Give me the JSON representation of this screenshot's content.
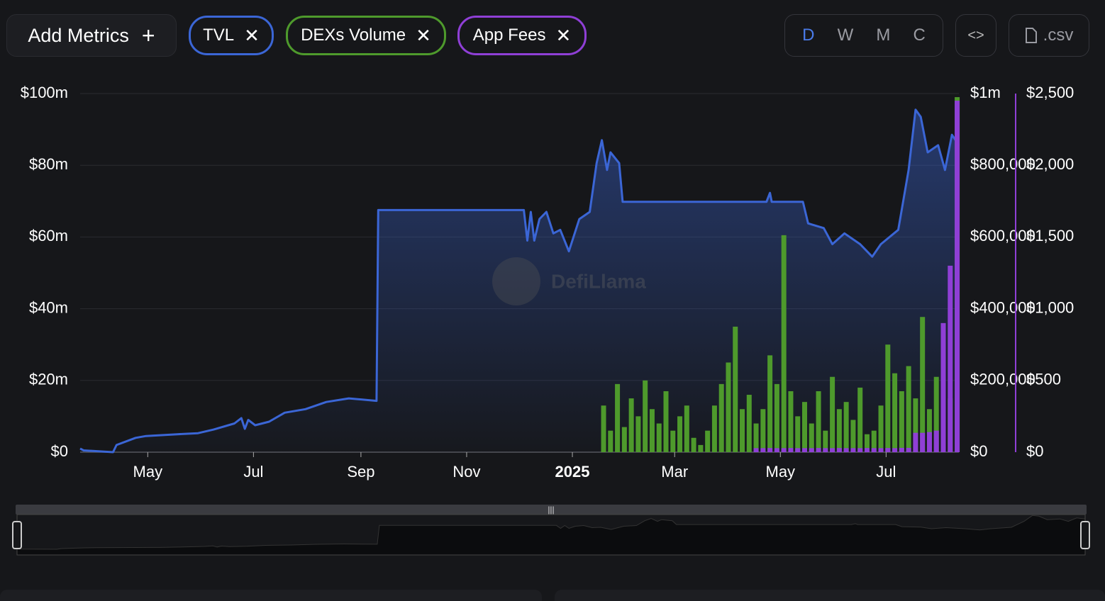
{
  "toolbar": {
    "add_metrics": "Add Metrics",
    "granularity": [
      "D",
      "W",
      "M",
      "C"
    ],
    "export": ".csv"
  },
  "watermark": "DefiLlama",
  "chart_data": {
    "type": "combo",
    "xlim": [
      0,
      507
    ],
    "xticks": [
      {
        "value": 39,
        "label": "May"
      },
      {
        "value": 100,
        "label": "Jul"
      },
      {
        "value": 162,
        "label": "Sep"
      },
      {
        "value": 223,
        "label": "Nov"
      },
      {
        "value": 284,
        "label": "2025"
      },
      {
        "value": 343,
        "label": "Mar"
      },
      {
        "value": 404,
        "label": "May"
      },
      {
        "value": 465,
        "label": "Jul"
      }
    ],
    "ylim": [
      0,
      100
    ],
    "yticks": [
      {
        "value": 0,
        "label": "$0"
      },
      {
        "value": 20,
        "label": "$20m"
      },
      {
        "value": 40,
        "label": "$40m"
      },
      {
        "value": 60,
        "label": "$60m"
      },
      {
        "value": 80,
        "label": "$80m"
      },
      {
        "value": 100,
        "label": "$100m"
      }
    ],
    "y2lim": [
      0,
      1000000
    ],
    "y2ticks": [
      {
        "value": 0,
        "label": "$0"
      },
      {
        "value": 200000,
        "label": "$200,000"
      },
      {
        "value": 400000,
        "label": "$400,000"
      },
      {
        "value": 600000,
        "label": "$600,000"
      },
      {
        "value": 800000,
        "label": "$800,000"
      },
      {
        "value": 1000000,
        "label": "$1m"
      }
    ],
    "y3lim": [
      0,
      2500
    ],
    "y3ticks": [
      {
        "value": 0,
        "label": "$0"
      },
      {
        "value": 500,
        "label": "$500"
      },
      {
        "value": 1000,
        "label": "$1,000"
      },
      {
        "value": 1500,
        "label": "$1,500"
      },
      {
        "value": 2000,
        "label": "$2,000"
      },
      {
        "value": 2500,
        "label": "$2,500"
      }
    ],
    "grid": true,
    "series": [
      {
        "name": "TVL",
        "color": "#3b66d6",
        "type": "area",
        "axis": "y",
        "x": [
          0,
          2,
          19,
          21,
          32,
          38,
          56,
          68,
          77,
          89,
          93,
          95,
          97,
          101,
          109,
          118,
          130,
          142,
          155,
          171,
          172,
          256,
          258,
          260,
          262,
          265,
          269,
          273,
          277,
          282,
          288,
          294,
          298,
          301,
          304,
          306,
          311,
          313,
          396,
          398,
          399,
          417,
          420,
          429,
          434,
          441,
          450,
          457,
          462,
          472,
          478,
          482,
          485,
          489,
          495,
          499,
          503,
          507
        ],
        "values": [
          1,
          0.5,
          0,
          2,
          4,
          4.5,
          5,
          5.3,
          6.3,
          8,
          9.5,
          6.5,
          9,
          7.5,
          8.5,
          11,
          12,
          14,
          15,
          14.3,
          67.5,
          67.5,
          59,
          67,
          59,
          65,
          67,
          61,
          62,
          56,
          65,
          67,
          80.6,
          87,
          78.7,
          83.6,
          80.6,
          69.8,
          69.8,
          72.3,
          69.8,
          69.8,
          63.8,
          62.5,
          58,
          61,
          58,
          54.5,
          58,
          62,
          78.7,
          95.5,
          93.5,
          83.6,
          85.6,
          78.7,
          88.5,
          85.6
        ]
      },
      {
        "name": "DEXs Volume",
        "color": "#4e9a2c",
        "type": "bar",
        "axis": "y2",
        "x": [
          302,
          306,
          310,
          314,
          318,
          322,
          326,
          330,
          334,
          338,
          342,
          346,
          350,
          354,
          358,
          362,
          366,
          370,
          374,
          378,
          382,
          386,
          390,
          394,
          398,
          402,
          406,
          410,
          414,
          418,
          422,
          426,
          430,
          434,
          438,
          442,
          446,
          450,
          454,
          458,
          462,
          466,
          470,
          474,
          478,
          482,
          486,
          490,
          494,
          498,
          502,
          506
        ],
        "values": [
          130000,
          60000,
          190000,
          70000,
          150000,
          100000,
          200000,
          120000,
          80000,
          170000,
          60000,
          100000,
          130000,
          40000,
          20000,
          60000,
          130000,
          190000,
          250000,
          350000,
          120000,
          160000,
          80000,
          120000,
          270000,
          190000,
          605000,
          170000,
          100000,
          140000,
          80000,
          170000,
          60000,
          210000,
          120000,
          140000,
          90000,
          180000,
          50000,
          60000,
          130000,
          300000,
          220000,
          170000,
          240000,
          150000,
          377000,
          120000,
          210000,
          90000,
          150000,
          990000
        ]
      },
      {
        "name": "App Fees",
        "color": "#8f3fd6",
        "type": "bar",
        "axis": "y3",
        "x": [
          390,
          394,
          398,
          402,
          406,
          410,
          414,
          418,
          422,
          426,
          430,
          434,
          438,
          442,
          446,
          450,
          454,
          458,
          462,
          466,
          470,
          474,
          478,
          482,
          486,
          490,
          494,
          498,
          502,
          506
        ],
        "values": [
          28,
          28,
          29,
          28,
          28,
          29,
          28,
          28,
          28,
          29,
          28,
          28,
          29,
          28,
          28,
          28,
          29,
          28,
          28,
          29,
          28,
          30,
          30,
          135,
          135,
          140,
          150,
          900,
          1300,
          2450
        ]
      }
    ]
  }
}
